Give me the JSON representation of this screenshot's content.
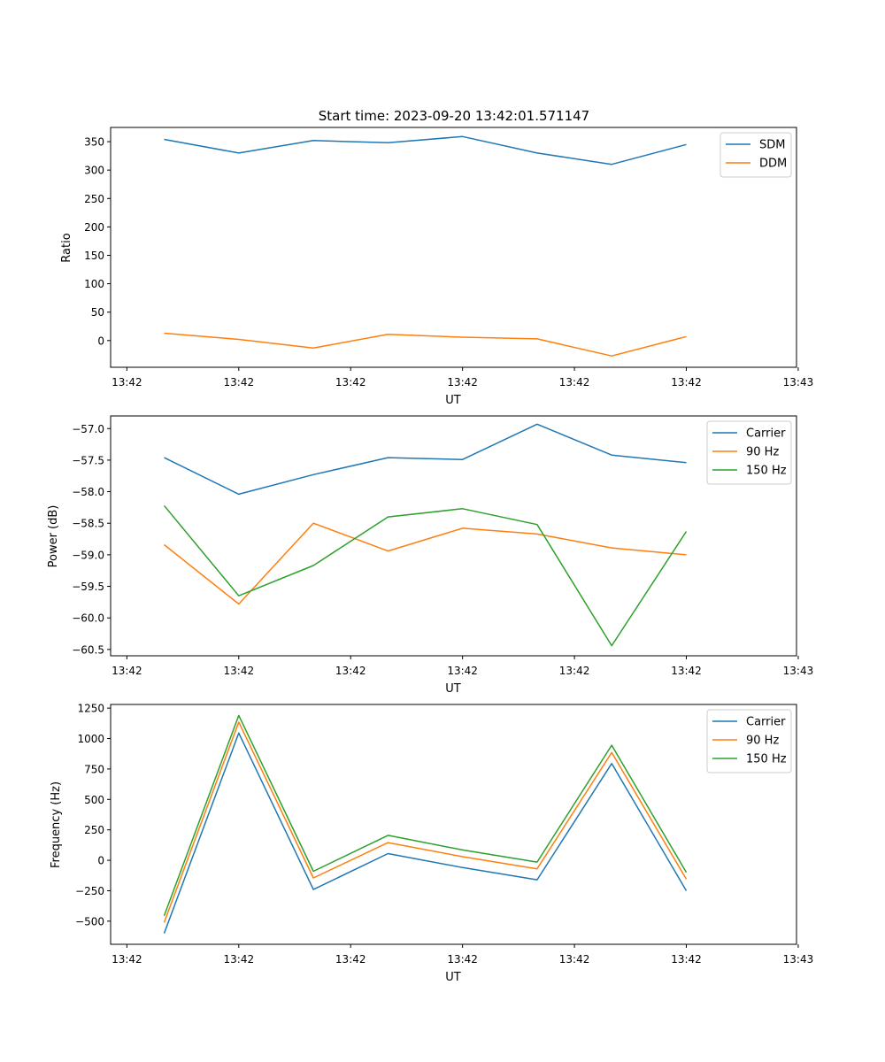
{
  "figure": {
    "title": "Start time: 2023-09-20 13:42:01.571147"
  },
  "chart_data": [
    {
      "type": "line",
      "title": "Start time: 2023-09-20 13:42:01.571147",
      "xlabel": "UT",
      "ylabel": "Ratio",
      "x": [
        1,
        2,
        3,
        4,
        5,
        6,
        7,
        8
      ],
      "xlim": [
        0.282,
        9.477
      ],
      "xticks": [
        0.5,
        2,
        3.5,
        5,
        6.5,
        8,
        9.5
      ],
      "xticklabels": [
        "13:42",
        "13:42",
        "13:42",
        "13:42",
        "13:42",
        "13:42",
        "13:43"
      ],
      "ylim": [
        -47,
        375
      ],
      "yticks": [
        0,
        50,
        100,
        150,
        200,
        250,
        300,
        350
      ],
      "legend": "top-right",
      "series": [
        {
          "name": "SDM",
          "color": "#1f77b4",
          "values": [
            354,
            330,
            352,
            348,
            359,
            330,
            310,
            345
          ]
        },
        {
          "name": "DDM",
          "color": "#ff7f0e",
          "values": [
            13,
            2,
            -13,
            11,
            6,
            3,
            -27,
            7
          ]
        }
      ]
    },
    {
      "type": "line",
      "title": "",
      "xlabel": "UT",
      "ylabel": "Power (dB)",
      "x": [
        1,
        2,
        3,
        4,
        5,
        6,
        7,
        8
      ],
      "xlim": [
        0.282,
        9.477
      ],
      "xticks": [
        0.5,
        2,
        3.5,
        5,
        6.5,
        8,
        9.5
      ],
      "xticklabels": [
        "13:42",
        "13:42",
        "13:42",
        "13:42",
        "13:42",
        "13:42",
        "13:43"
      ],
      "ylim": [
        -60.6,
        -56.8
      ],
      "yticks": [
        -57.0,
        -57.5,
        -58.0,
        -58.5,
        -59.0,
        -59.5,
        -60.0,
        -60.5
      ],
      "yticklabels": [
        "−57.0",
        "−57.5",
        "−58.0",
        "−58.5",
        "−59.0",
        "−59.5",
        "−60.0",
        "−60.5"
      ],
      "legend": "top-right",
      "series": [
        {
          "name": "Carrier",
          "color": "#1f77b4",
          "values": [
            -57.46,
            -58.04,
            -57.73,
            -57.46,
            -57.49,
            -56.93,
            -57.42,
            -57.54
          ]
        },
        {
          "name": "90 Hz",
          "color": "#ff7f0e",
          "values": [
            -58.84,
            -59.78,
            -58.5,
            -58.94,
            -58.58,
            -58.67,
            -58.89,
            -59.0
          ]
        },
        {
          "name": "150 Hz",
          "color": "#2ca02c",
          "values": [
            -58.22,
            -59.65,
            -59.17,
            -58.4,
            -58.27,
            -58.52,
            -60.44,
            -58.63
          ]
        }
      ]
    },
    {
      "type": "line",
      "title": "",
      "xlabel": "UT",
      "ylabel": "Frequency (Hz)",
      "x": [
        1,
        2,
        3,
        4,
        5,
        6,
        7,
        8
      ],
      "xlim": [
        0.282,
        9.477
      ],
      "xticks": [
        0.5,
        2,
        3.5,
        5,
        6.5,
        8,
        9.5
      ],
      "xticklabels": [
        "13:42",
        "13:42",
        "13:42",
        "13:42",
        "13:42",
        "13:42",
        "13:43"
      ],
      "ylim": [
        -690,
        1280
      ],
      "yticks": [
        -500,
        -250,
        0,
        250,
        500,
        750,
        1000,
        1250
      ],
      "yticklabels": [
        "−500",
        "−250",
        "0",
        "250",
        "500",
        "750",
        "1000",
        "1250"
      ],
      "legend": "top-right",
      "series": [
        {
          "name": "Carrier",
          "color": "#1f77b4",
          "values": [
            -600,
            1045,
            -240,
            55,
            -60,
            -160,
            795,
            -250
          ]
        },
        {
          "name": "90 Hz",
          "color": "#ff7f0e",
          "values": [
            -510,
            1135,
            -145,
            145,
            30,
            -70,
            885,
            -155
          ]
        },
        {
          "name": "150 Hz",
          "color": "#2ca02c",
          "values": [
            -455,
            1190,
            -90,
            205,
            85,
            -15,
            945,
            -100
          ]
        }
      ]
    }
  ]
}
